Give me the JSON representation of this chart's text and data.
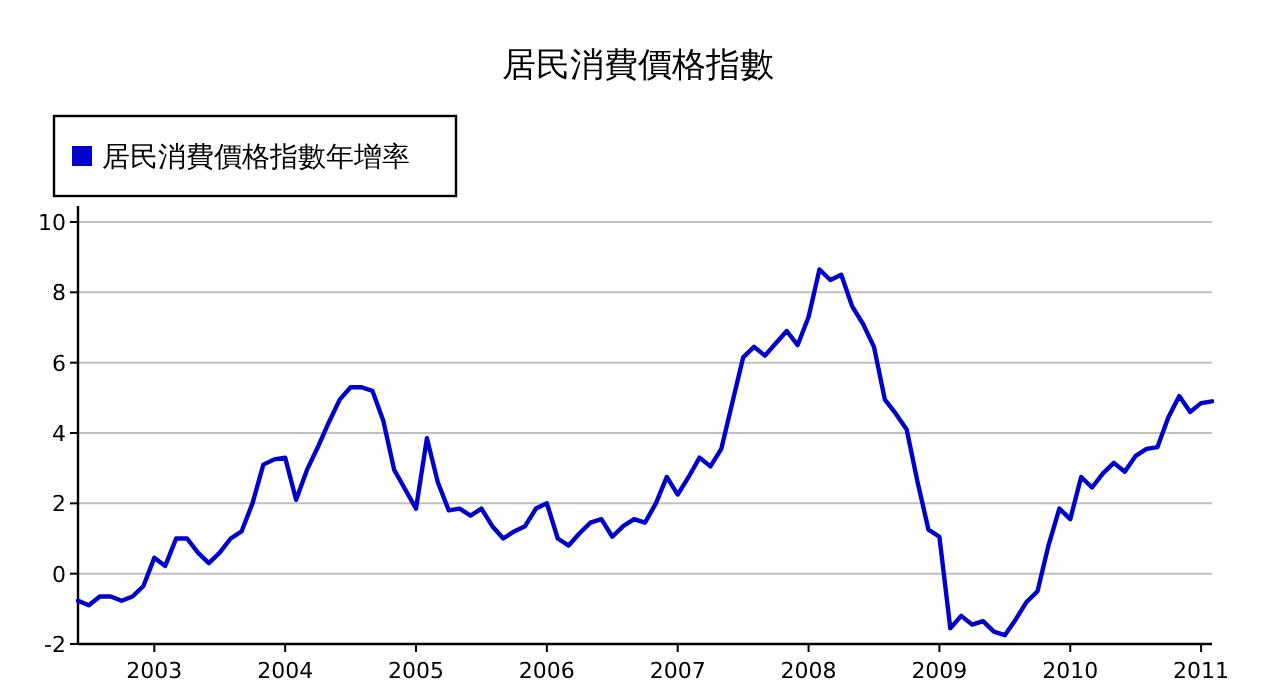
{
  "chart_data": {
    "type": "line",
    "title": "居民消費價格指數",
    "x": [
      "2002-06",
      "2002-07",
      "2002-08",
      "2002-09",
      "2002-10",
      "2002-11",
      "2002-12",
      "2003-01",
      "2003-02",
      "2003-03",
      "2003-04",
      "2003-05",
      "2003-06",
      "2003-07",
      "2003-08",
      "2003-09",
      "2003-10",
      "2003-11",
      "2003-12",
      "2004-01",
      "2004-02",
      "2004-03",
      "2004-04",
      "2004-05",
      "2004-06",
      "2004-07",
      "2004-08",
      "2004-09",
      "2004-10",
      "2004-11",
      "2004-12",
      "2005-01",
      "2005-02",
      "2005-03",
      "2005-04",
      "2005-05",
      "2005-06",
      "2005-07",
      "2005-08",
      "2005-09",
      "2005-10",
      "2005-11",
      "2005-12",
      "2006-01",
      "2006-02",
      "2006-03",
      "2006-04",
      "2006-05",
      "2006-06",
      "2006-07",
      "2006-08",
      "2006-09",
      "2006-10",
      "2006-11",
      "2006-12",
      "2007-01",
      "2007-02",
      "2007-03",
      "2007-04",
      "2007-05",
      "2007-06",
      "2007-07",
      "2007-08",
      "2007-09",
      "2007-10",
      "2007-11",
      "2007-12",
      "2008-01",
      "2008-02",
      "2008-03",
      "2008-04",
      "2008-05",
      "2008-06",
      "2008-07",
      "2008-08",
      "2008-09",
      "2008-10",
      "2008-11",
      "2008-12",
      "2009-01",
      "2009-02",
      "2009-03",
      "2009-04",
      "2009-05",
      "2009-06",
      "2009-07",
      "2009-08",
      "2009-09",
      "2009-10",
      "2009-11",
      "2009-12",
      "2010-01",
      "2010-02",
      "2010-03",
      "2010-04",
      "2010-05",
      "2010-06",
      "2010-07",
      "2010-08",
      "2010-09",
      "2010-10",
      "2010-11",
      "2010-12",
      "2011-01",
      "2011-02"
    ],
    "series": [
      {
        "name": "居民消費價格指數年增率",
        "color": "#0000cc",
        "values": [
          -0.77,
          -0.9,
          -0.65,
          -0.65,
          -0.77,
          -0.65,
          -0.35,
          0.45,
          0.22,
          1.0,
          1.0,
          0.6,
          0.3,
          0.6,
          1.0,
          1.2,
          2.0,
          3.1,
          3.25,
          3.3,
          2.1,
          2.95,
          3.6,
          4.3,
          4.95,
          5.3,
          5.3,
          5.2,
          4.35,
          2.95,
          2.4,
          1.85,
          3.85,
          2.6,
          1.8,
          1.85,
          1.65,
          1.85,
          1.35,
          1.0,
          1.2,
          1.35,
          1.85,
          2.0,
          1.0,
          0.8,
          1.15,
          1.45,
          1.55,
          1.05,
          1.35,
          1.55,
          1.45,
          2.0,
          2.75,
          2.25,
          2.75,
          3.3,
          3.05,
          3.55,
          4.85,
          6.15,
          6.45,
          6.2,
          6.55,
          6.9,
          6.5,
          7.3,
          8.65,
          8.35,
          8.5,
          7.6,
          7.1,
          6.45,
          4.95,
          4.55,
          4.1,
          2.6,
          1.25,
          1.05,
          -1.55,
          -1.2,
          -1.45,
          -1.35,
          -1.65,
          -1.75,
          -1.3,
          -0.8,
          -0.5,
          0.8,
          1.85,
          1.55,
          2.75,
          2.45,
          2.85,
          3.15,
          2.9,
          3.35,
          3.55,
          3.6,
          4.45,
          5.05,
          4.6,
          4.85,
          4.9
        ]
      }
    ],
    "xlim": [
      "2002-06",
      "2011-02"
    ],
    "xticks": [
      {
        "value": "2003",
        "label": "2003"
      },
      {
        "value": "2004",
        "label": "2004"
      },
      {
        "value": "2005",
        "label": "2005"
      },
      {
        "value": "2006",
        "label": "2006"
      },
      {
        "value": "2007",
        "label": "2007"
      },
      {
        "value": "2008",
        "label": "2008"
      },
      {
        "value": "2009",
        "label": "2009"
      },
      {
        "value": "2010",
        "label": "2010"
      },
      {
        "value": "2011",
        "label": "2011"
      }
    ],
    "ylim": [
      -2,
      10
    ],
    "yticks": [
      -2,
      0,
      2,
      4,
      6,
      8,
      10
    ],
    "grid": "y",
    "legend": "top left",
    "marker": "none",
    "line_style": "solid"
  }
}
